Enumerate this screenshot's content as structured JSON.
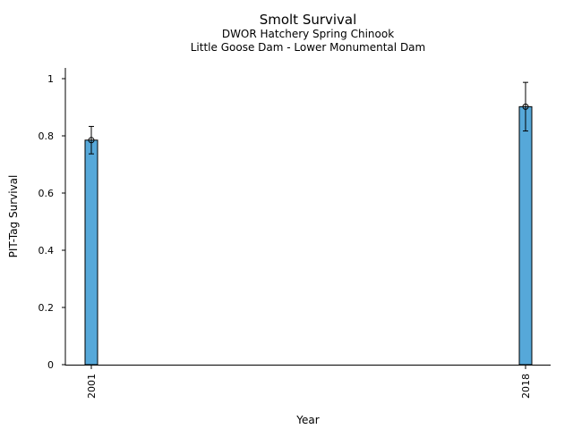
{
  "chart_data": {
    "type": "bar",
    "title": "Smolt Survival",
    "subtitle_lines": [
      "DWOR Hatchery Spring Chinook",
      "Little Goose Dam - Lower Monumental Dam"
    ],
    "xlabel": "Year",
    "ylabel": "PIT-Tag Survival",
    "x": [
      2001,
      2018
    ],
    "x_tick_labels": [
      "2001",
      "2018"
    ],
    "values": [
      0.785,
      0.902
    ],
    "error_low": [
      0.737,
      0.817
    ],
    "error_high": [
      0.833,
      0.987
    ],
    "ylim": [
      0,
      1.0
    ],
    "y_ticks": [
      0,
      0.2,
      0.4,
      0.6,
      0.8,
      1
    ],
    "y_tick_labels": [
      "0",
      "0.2",
      "0.4",
      "0.6",
      "0.8",
      "1"
    ],
    "grid": false,
    "colors": {
      "bar": "#56a8d9",
      "edge": "#000000"
    }
  }
}
